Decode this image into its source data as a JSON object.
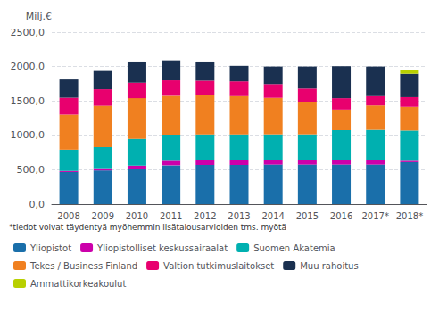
{
  "chart_data": {
    "type": "bar",
    "stacked": true,
    "ylabel": "Milj.€",
    "footnote": "*tiedot voivat täydentyä myöhemmin lisätalousarvioiden tms. myötä",
    "categories": [
      "2008",
      "2009",
      "2010",
      "2011",
      "2012",
      "2013",
      "2014",
      "2015",
      "2016",
      "2017*",
      "2018*"
    ],
    "series": [
      {
        "name": "Yliopistot",
        "color": "#1a6faa",
        "values": [
          467,
          490,
          505,
          565,
          570,
          570,
          575,
          575,
          575,
          575,
          610
        ]
      },
      {
        "name": "Yliopistolliset keskussairaalat",
        "color": "#cc00aa",
        "values": [
          15,
          20,
          55,
          65,
          70,
          70,
          70,
          70,
          65,
          65,
          20
        ]
      },
      {
        "name": "Suomen Akatemia",
        "color": "#00b0b0",
        "values": [
          310,
          320,
          390,
          375,
          375,
          375,
          370,
          370,
          435,
          440,
          440
        ]
      },
      {
        "name": "Tekes / Business Finland",
        "color": "#f08020",
        "values": [
          510,
          600,
          590,
          570,
          565,
          555,
          530,
          470,
          300,
          355,
          345
        ]
      },
      {
        "name": "Valtion tutkimuslaitokset",
        "color": "#e8006e",
        "values": [
          245,
          240,
          225,
          225,
          215,
          215,
          200,
          195,
          165,
          135,
          140
        ]
      },
      {
        "name": "Muu rahoitus",
        "color": "#1a3050",
        "values": [
          265,
          265,
          295,
          290,
          265,
          225,
          255,
          320,
          465,
          430,
          340
        ]
      },
      {
        "name": "Ammattikorkeakoulut",
        "color": "#b8d000",
        "values": [
          0,
          0,
          0,
          0,
          0,
          0,
          0,
          0,
          0,
          0,
          55
        ]
      }
    ],
    "ylim": [
      0,
      2500
    ],
    "yticks": [
      {
        "value": 0,
        "label": "0,0"
      },
      {
        "value": 500,
        "label": "500,0"
      },
      {
        "value": 1000,
        "label": "1000,0"
      },
      {
        "value": 1500,
        "label": "1500,0"
      },
      {
        "value": 2000,
        "label": "2000,0"
      },
      {
        "value": 2500,
        "label": "2500,0"
      }
    ],
    "grid": true,
    "legend": "bottom"
  }
}
